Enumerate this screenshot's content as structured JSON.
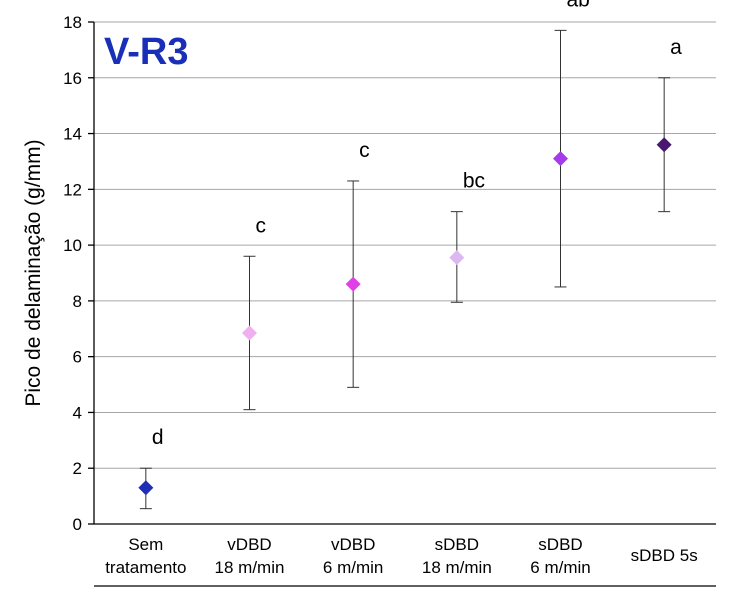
{
  "chart_data": {
    "type": "scatter",
    "title": "V-R3",
    "title_color": "#1a2fb8",
    "xlabel": "",
    "ylabel": "Pico de delaminação (g/mm)",
    "ylim": [
      0,
      18
    ],
    "yticks": [
      "0",
      "2",
      "4",
      "6",
      "8",
      "10",
      "12",
      "14",
      "16",
      "18"
    ],
    "grid": true,
    "points": [
      {
        "label_lines": [
          "Sem",
          "tratamento"
        ],
        "value": 1.3,
        "err_low": 0.55,
        "err_high": 2.0,
        "sig": "d",
        "color": "#1f2fb5"
      },
      {
        "label_lines": [
          "vDBD",
          "18 m/min"
        ],
        "value": 6.85,
        "err_low": 4.1,
        "err_high": 9.6,
        "sig": "c",
        "color": "#efb0ef"
      },
      {
        "label_lines": [
          "vDBD",
          "6 m/min"
        ],
        "value": 8.6,
        "err_low": 4.9,
        "err_high": 12.3,
        "sig": "c",
        "color": "#e040e8"
      },
      {
        "label_lines": [
          "sDBD",
          "18 m/min"
        ],
        "value": 9.55,
        "err_low": 7.95,
        "err_high": 11.2,
        "sig": "bc",
        "color": "#dcb8f0"
      },
      {
        "label_lines": [
          "sDBD",
          "6 m/min"
        ],
        "value": 13.1,
        "err_low": 8.5,
        "err_high": 17.7,
        "sig": "ab",
        "color": "#a43cec"
      },
      {
        "label_lines": [
          "sDBD 5s"
        ],
        "value": 13.6,
        "err_low": 11.2,
        "err_high": 16.0,
        "sig": "a",
        "color": "#4a1870"
      }
    ]
  }
}
